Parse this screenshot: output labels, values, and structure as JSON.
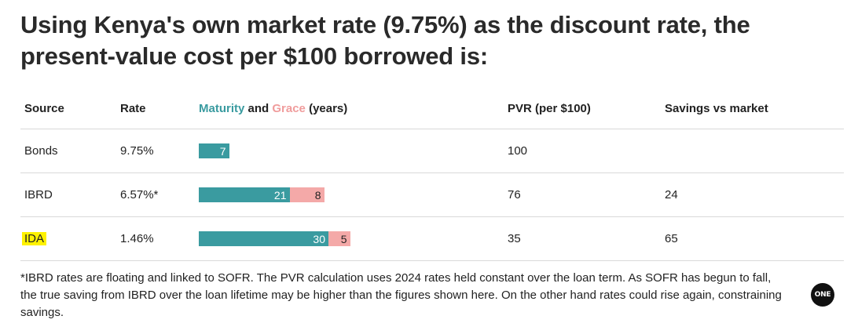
{
  "title": "Using Kenya's own market rate (9.75%) as the discount rate, the present-value cost per $100 borrowed is:",
  "headers": {
    "source": "Source",
    "rate": "Rate",
    "maturity": "Maturity",
    "and": " and ",
    "grace": "Grace",
    "years": " (years)",
    "pvr": "PVR (per $100)",
    "savings": "Savings vs market"
  },
  "colors": {
    "maturity": "#3a9ba0",
    "grace": "#f4a9a8",
    "highlight": "#fff200"
  },
  "chart_data": {
    "type": "table",
    "columns": [
      "Source",
      "Rate",
      "Maturity and Grace (years)",
      "PVR (per $100)",
      "Savings vs market"
    ],
    "rows": [
      {
        "source": "Bonds",
        "rate": "9.75%",
        "maturity": 7,
        "grace": null,
        "maturity_label": "7",
        "grace_label": "",
        "pvr": "100",
        "savings": "",
        "highlight": false
      },
      {
        "source": "IBRD",
        "rate": "6.57%*",
        "maturity": 21,
        "grace": 8,
        "maturity_label": "21",
        "grace_label": "8",
        "pvr": "76",
        "savings": "24",
        "highlight": false
      },
      {
        "source": "IDA",
        "rate": "1.46%",
        "maturity": 30,
        "grace": 5,
        "maturity_label": "30",
        "grace_label": "5",
        "pvr": "35",
        "savings": "65",
        "highlight": true
      }
    ]
  },
  "footnote": "*IBRD rates are floating and linked to SOFR. The PVR calculation uses 2024 rates held constant over the loan term. As SOFR has begun to fall, the true saving from IBRD over the loan lifetime may be higher than the figures shown here. On the other hand rates could rise again, constraining savings.",
  "logo_text": "ONE"
}
